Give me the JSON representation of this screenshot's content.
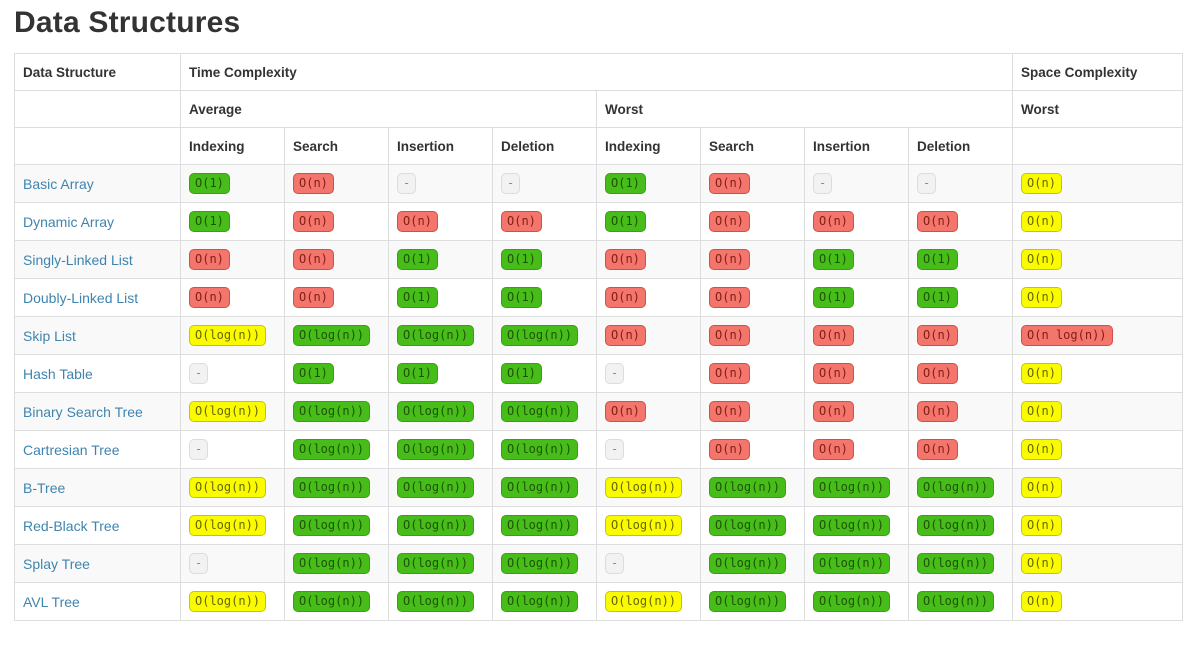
{
  "page": {
    "title": "Data Structures"
  },
  "colors": {
    "heading": "#333333",
    "link": "#3f84af",
    "border": "#dddddd",
    "stripe": "#f9f9f9",
    "green_bg": "#46bd19",
    "green_border": "#36a30d",
    "green_text": "#1f5207",
    "red_bg": "#f4756c",
    "red_border": "#d05048",
    "red_text": "#801d16",
    "yellow_bg": "#fbfb00",
    "yellow_border": "#c6c600",
    "yellow_text": "#666600",
    "gray_bg": "#f2f2f2",
    "gray_border": "#dcdcdc",
    "gray_text": "#8a8a8a"
  },
  "table": {
    "headers": {
      "data_structure": "Data Structure",
      "time_complexity": "Time Complexity",
      "space_complexity": "Space Complexity",
      "average": "Average",
      "worst": "Worst",
      "space_worst": "Worst",
      "sub_columns": [
        "Indexing",
        "Search",
        "Insertion",
        "Deletion",
        "Indexing",
        "Search",
        "Insertion",
        "Deletion"
      ]
    },
    "rows": [
      {
        "name": "Basic Array",
        "cells": [
          {
            "text": "O(1)",
            "level": "green"
          },
          {
            "text": "O(n)",
            "level": "red"
          },
          {
            "text": "-",
            "level": "gray"
          },
          {
            "text": "-",
            "level": "gray"
          },
          {
            "text": "O(1)",
            "level": "green"
          },
          {
            "text": "O(n)",
            "level": "red"
          },
          {
            "text": "-",
            "level": "gray"
          },
          {
            "text": "-",
            "level": "gray"
          },
          {
            "text": "O(n)",
            "level": "yellow"
          }
        ]
      },
      {
        "name": "Dynamic Array",
        "cells": [
          {
            "text": "O(1)",
            "level": "green"
          },
          {
            "text": "O(n)",
            "level": "red"
          },
          {
            "text": "O(n)",
            "level": "red"
          },
          {
            "text": "O(n)",
            "level": "red"
          },
          {
            "text": "O(1)",
            "level": "green"
          },
          {
            "text": "O(n)",
            "level": "red"
          },
          {
            "text": "O(n)",
            "level": "red"
          },
          {
            "text": "O(n)",
            "level": "red"
          },
          {
            "text": "O(n)",
            "level": "yellow"
          }
        ]
      },
      {
        "name": "Singly-Linked List",
        "cells": [
          {
            "text": "O(n)",
            "level": "red"
          },
          {
            "text": "O(n)",
            "level": "red"
          },
          {
            "text": "O(1)",
            "level": "green"
          },
          {
            "text": "O(1)",
            "level": "green"
          },
          {
            "text": "O(n)",
            "level": "red"
          },
          {
            "text": "O(n)",
            "level": "red"
          },
          {
            "text": "O(1)",
            "level": "green"
          },
          {
            "text": "O(1)",
            "level": "green"
          },
          {
            "text": "O(n)",
            "level": "yellow"
          }
        ]
      },
      {
        "name": "Doubly-Linked List",
        "cells": [
          {
            "text": "O(n)",
            "level": "red"
          },
          {
            "text": "O(n)",
            "level": "red"
          },
          {
            "text": "O(1)",
            "level": "green"
          },
          {
            "text": "O(1)",
            "level": "green"
          },
          {
            "text": "O(n)",
            "level": "red"
          },
          {
            "text": "O(n)",
            "level": "red"
          },
          {
            "text": "O(1)",
            "level": "green"
          },
          {
            "text": "O(1)",
            "level": "green"
          },
          {
            "text": "O(n)",
            "level": "yellow"
          }
        ]
      },
      {
        "name": "Skip List",
        "cells": [
          {
            "text": "O(log(n))",
            "level": "yellow"
          },
          {
            "text": "O(log(n))",
            "level": "green"
          },
          {
            "text": "O(log(n))",
            "level": "green"
          },
          {
            "text": "O(log(n))",
            "level": "green"
          },
          {
            "text": "O(n)",
            "level": "red"
          },
          {
            "text": "O(n)",
            "level": "red"
          },
          {
            "text": "O(n)",
            "level": "red"
          },
          {
            "text": "O(n)",
            "level": "red"
          },
          {
            "text": "O(n log(n))",
            "level": "red"
          }
        ]
      },
      {
        "name": "Hash Table",
        "cells": [
          {
            "text": "-",
            "level": "gray"
          },
          {
            "text": "O(1)",
            "level": "green"
          },
          {
            "text": "O(1)",
            "level": "green"
          },
          {
            "text": "O(1)",
            "level": "green"
          },
          {
            "text": "-",
            "level": "gray"
          },
          {
            "text": "O(n)",
            "level": "red"
          },
          {
            "text": "O(n)",
            "level": "red"
          },
          {
            "text": "O(n)",
            "level": "red"
          },
          {
            "text": "O(n)",
            "level": "yellow"
          }
        ]
      },
      {
        "name": "Binary Search Tree",
        "cells": [
          {
            "text": "O(log(n))",
            "level": "yellow"
          },
          {
            "text": "O(log(n))",
            "level": "green"
          },
          {
            "text": "O(log(n))",
            "level": "green"
          },
          {
            "text": "O(log(n))",
            "level": "green"
          },
          {
            "text": "O(n)",
            "level": "red"
          },
          {
            "text": "O(n)",
            "level": "red"
          },
          {
            "text": "O(n)",
            "level": "red"
          },
          {
            "text": "O(n)",
            "level": "red"
          },
          {
            "text": "O(n)",
            "level": "yellow"
          }
        ]
      },
      {
        "name": "Cartresian Tree",
        "cells": [
          {
            "text": "-",
            "level": "gray"
          },
          {
            "text": "O(log(n))",
            "level": "green"
          },
          {
            "text": "O(log(n))",
            "level": "green"
          },
          {
            "text": "O(log(n))",
            "level": "green"
          },
          {
            "text": "-",
            "level": "gray"
          },
          {
            "text": "O(n)",
            "level": "red"
          },
          {
            "text": "O(n)",
            "level": "red"
          },
          {
            "text": "O(n)",
            "level": "red"
          },
          {
            "text": "O(n)",
            "level": "yellow"
          }
        ]
      },
      {
        "name": "B-Tree",
        "cells": [
          {
            "text": "O(log(n))",
            "level": "yellow"
          },
          {
            "text": "O(log(n))",
            "level": "green"
          },
          {
            "text": "O(log(n))",
            "level": "green"
          },
          {
            "text": "O(log(n))",
            "level": "green"
          },
          {
            "text": "O(log(n))",
            "level": "yellow"
          },
          {
            "text": "O(log(n))",
            "level": "green"
          },
          {
            "text": "O(log(n))",
            "level": "green"
          },
          {
            "text": "O(log(n))",
            "level": "green"
          },
          {
            "text": "O(n)",
            "level": "yellow"
          }
        ]
      },
      {
        "name": "Red-Black Tree",
        "cells": [
          {
            "text": "O(log(n))",
            "level": "yellow"
          },
          {
            "text": "O(log(n))",
            "level": "green"
          },
          {
            "text": "O(log(n))",
            "level": "green"
          },
          {
            "text": "O(log(n))",
            "level": "green"
          },
          {
            "text": "O(log(n))",
            "level": "yellow"
          },
          {
            "text": "O(log(n))",
            "level": "green"
          },
          {
            "text": "O(log(n))",
            "level": "green"
          },
          {
            "text": "O(log(n))",
            "level": "green"
          },
          {
            "text": "O(n)",
            "level": "yellow"
          }
        ]
      },
      {
        "name": "Splay Tree",
        "cells": [
          {
            "text": "-",
            "level": "gray"
          },
          {
            "text": "O(log(n))",
            "level": "green"
          },
          {
            "text": "O(log(n))",
            "level": "green"
          },
          {
            "text": "O(log(n))",
            "level": "green"
          },
          {
            "text": "-",
            "level": "gray"
          },
          {
            "text": "O(log(n))",
            "level": "green"
          },
          {
            "text": "O(log(n))",
            "level": "green"
          },
          {
            "text": "O(log(n))",
            "level": "green"
          },
          {
            "text": "O(n)",
            "level": "yellow"
          }
        ]
      },
      {
        "name": "AVL Tree",
        "cells": [
          {
            "text": "O(log(n))",
            "level": "yellow"
          },
          {
            "text": "O(log(n))",
            "level": "green"
          },
          {
            "text": "O(log(n))",
            "level": "green"
          },
          {
            "text": "O(log(n))",
            "level": "green"
          },
          {
            "text": "O(log(n))",
            "level": "yellow"
          },
          {
            "text": "O(log(n))",
            "level": "green"
          },
          {
            "text": "O(log(n))",
            "level": "green"
          },
          {
            "text": "O(log(n))",
            "level": "green"
          },
          {
            "text": "O(n)",
            "level": "yellow"
          }
        ]
      }
    ]
  }
}
